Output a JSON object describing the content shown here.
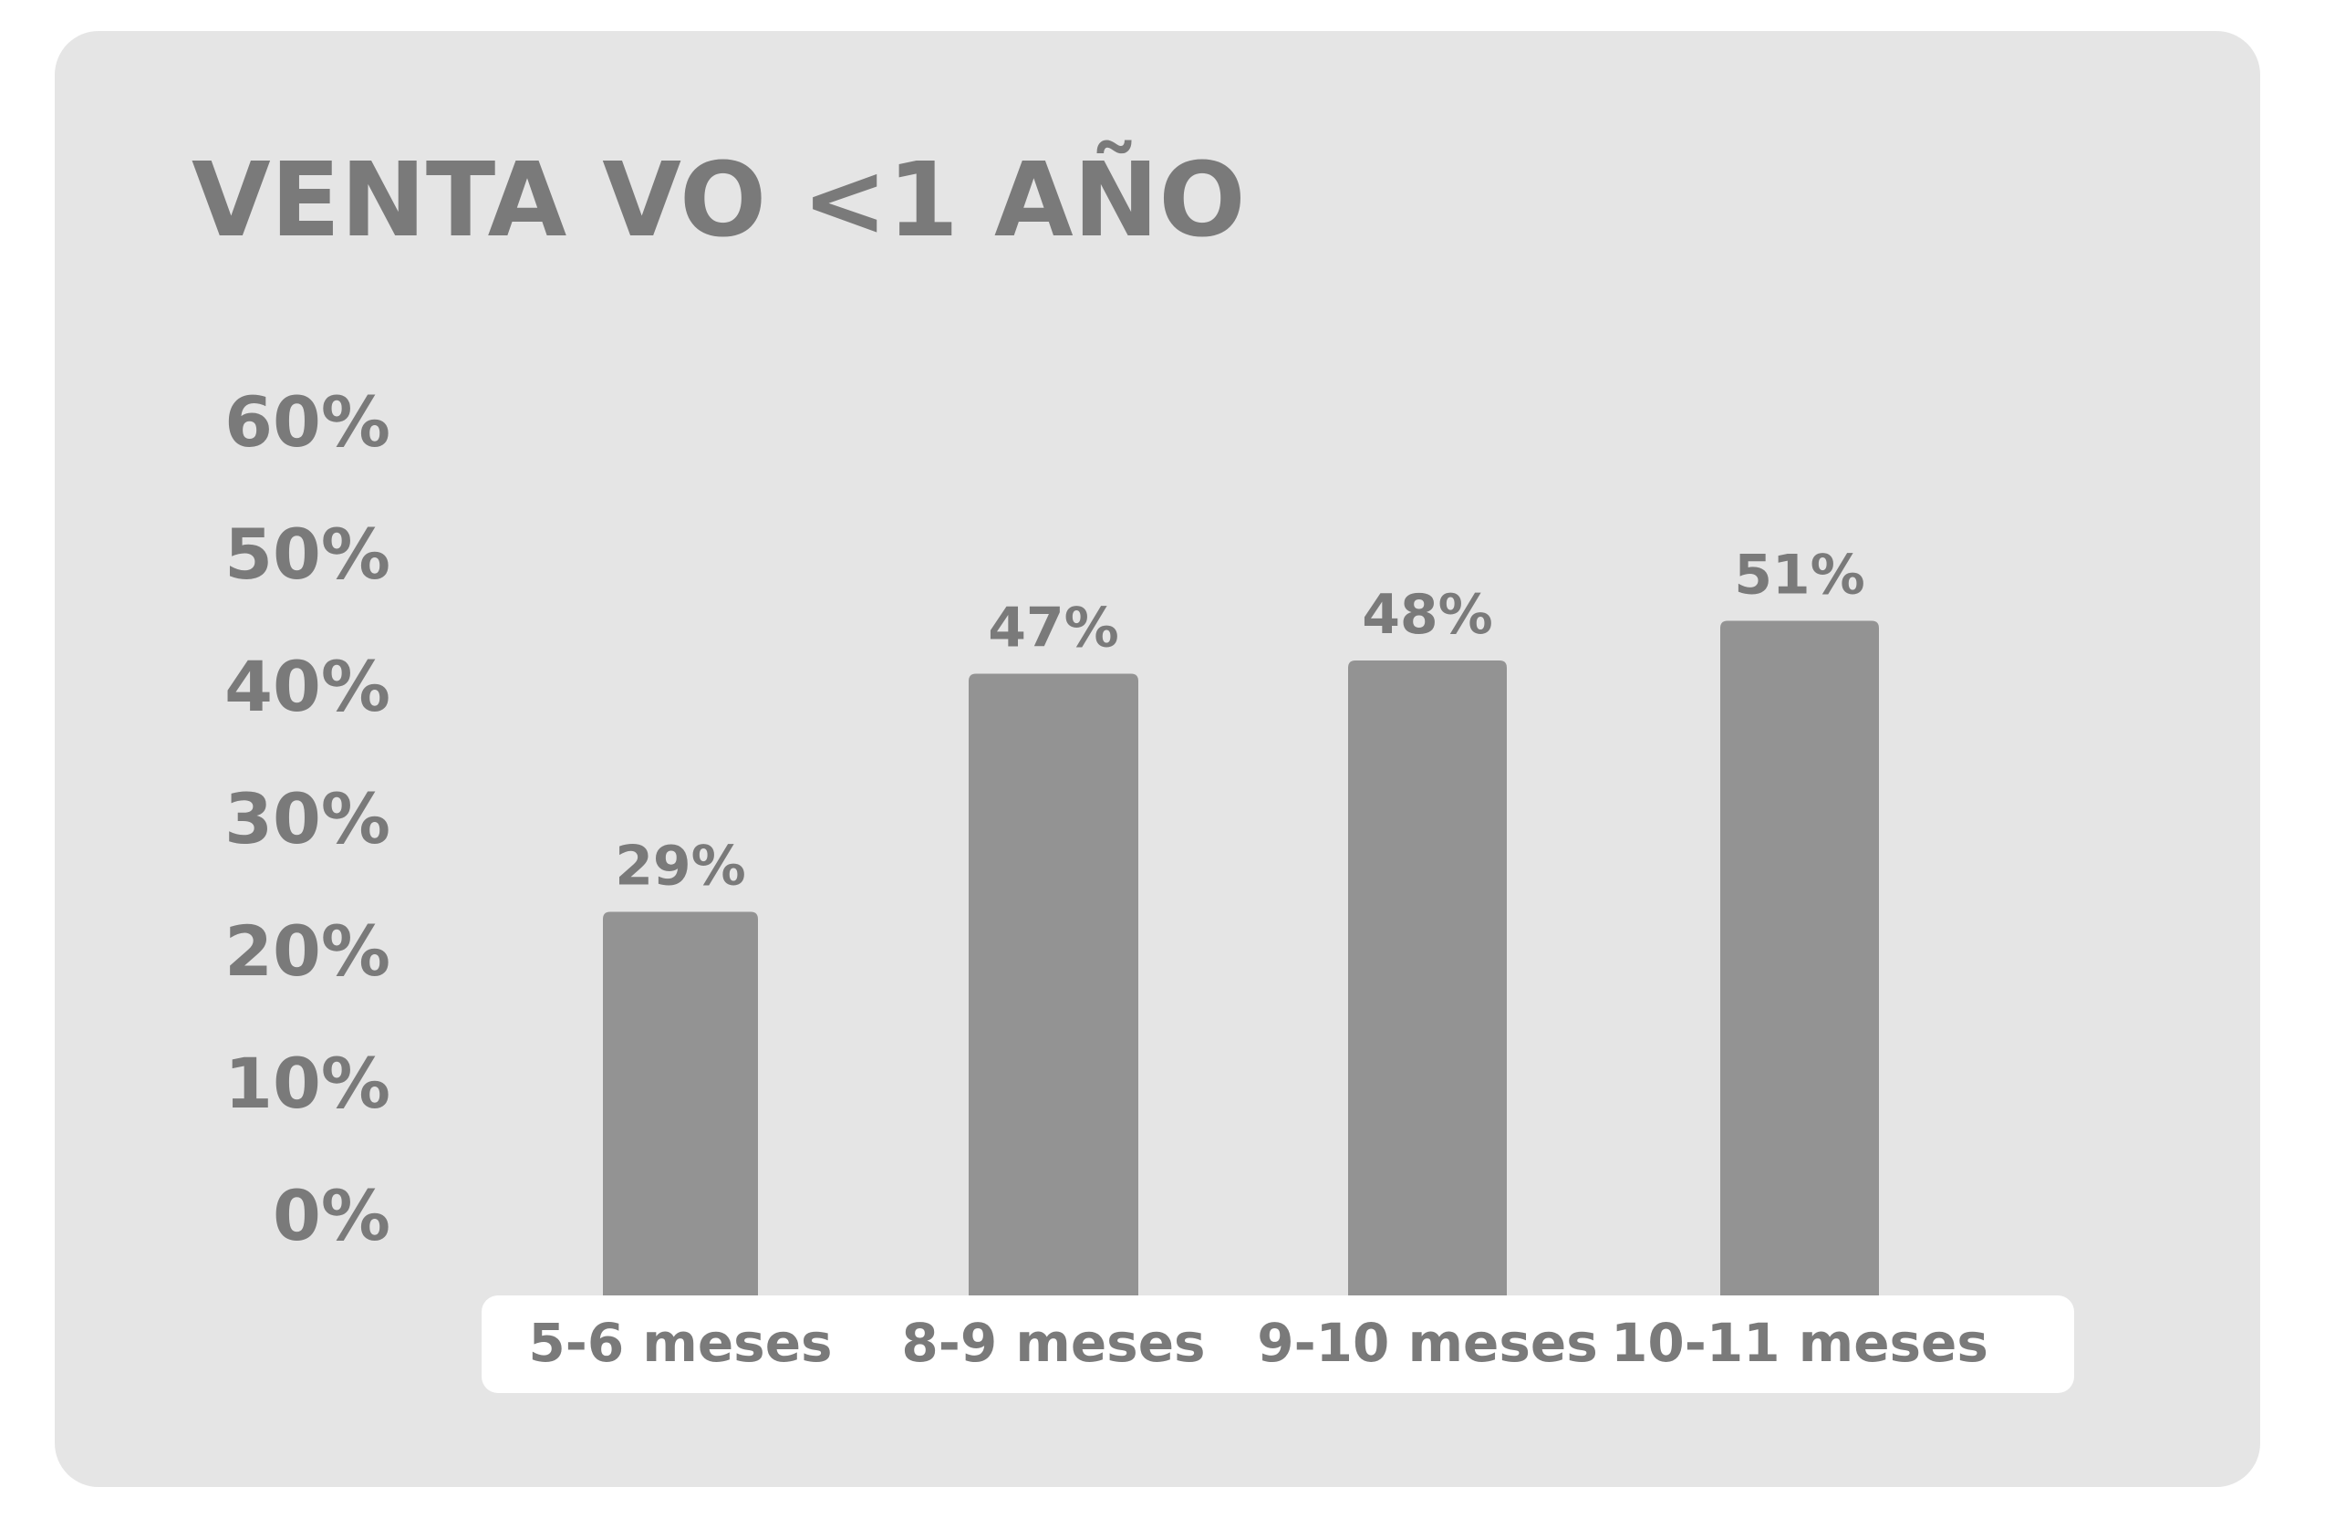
{
  "colors": {
    "page_background": "#ffffff",
    "panel": "#e5e5e5",
    "bar": "#939393",
    "text": "#7a7a7a",
    "category_strip": "#ffffff"
  },
  "chart_data": {
    "type": "bar",
    "title": "VENTA VO <1 AÑO",
    "xlabel": "",
    "ylabel": "",
    "categories": [
      "5-6 meses",
      "8-9 meses",
      "9-10 meses",
      "10-11 meses"
    ],
    "values": [
      29,
      47,
      48,
      51
    ],
    "value_labels": [
      "29%",
      "47%",
      "48%",
      "51%"
    ],
    "yticks": [
      0,
      10,
      20,
      30,
      40,
      50,
      60
    ],
    "ytick_labels": [
      "0%",
      "10%",
      "20%",
      "30%",
      "40%",
      "50%",
      "60%"
    ],
    "ylim": [
      0,
      60
    ],
    "grid": false,
    "legend": "none"
  }
}
